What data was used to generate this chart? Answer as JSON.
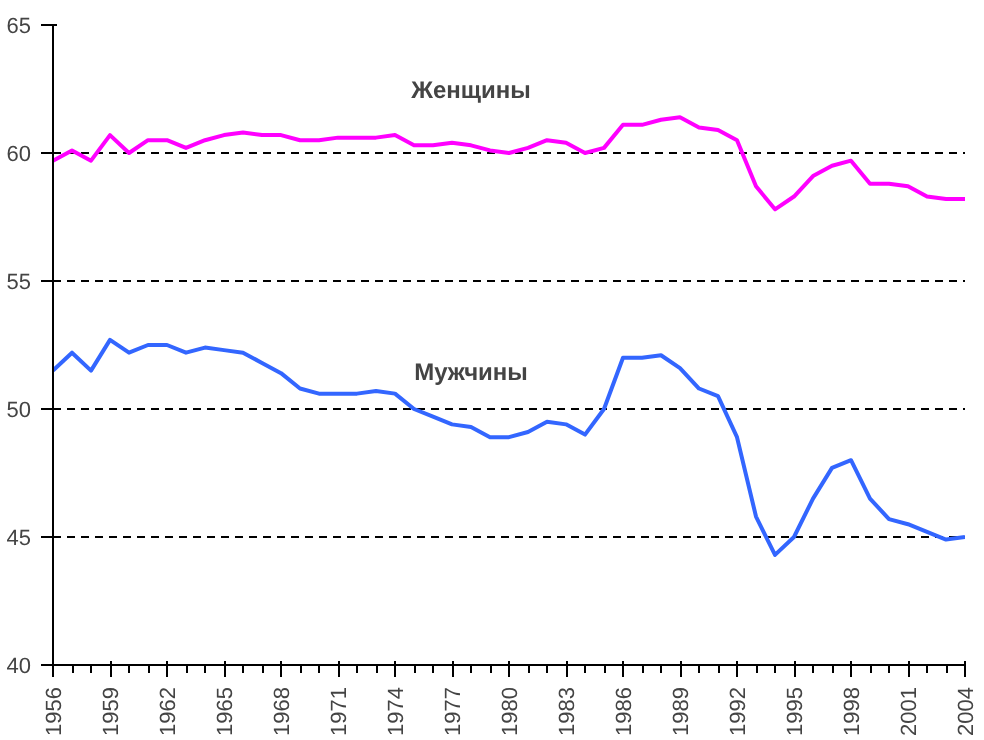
{
  "chart_data": {
    "type": "line",
    "x": [
      1956,
      1957,
      1958,
      1959,
      1960,
      1961,
      1962,
      1963,
      1964,
      1965,
      1966,
      1967,
      1968,
      1969,
      1970,
      1971,
      1972,
      1973,
      1974,
      1975,
      1976,
      1977,
      1978,
      1979,
      1980,
      1981,
      1982,
      1983,
      1984,
      1985,
      1986,
      1987,
      1988,
      1989,
      1990,
      1991,
      1992,
      1993,
      1994,
      1995,
      1996,
      1997,
      1998,
      1999,
      2000,
      2001,
      2002,
      2003,
      2004
    ],
    "series": [
      {
        "name": "Женщины",
        "color": "#ff00ff",
        "values": [
          59.7,
          60.1,
          59.7,
          60.7,
          60.0,
          60.5,
          60.5,
          60.2,
          60.5,
          60.7,
          60.8,
          60.7,
          60.7,
          60.5,
          60.5,
          60.6,
          60.6,
          60.6,
          60.7,
          60.3,
          60.3,
          60.4,
          60.3,
          60.1,
          60.0,
          60.2,
          60.5,
          60.4,
          60.0,
          60.2,
          61.1,
          61.1,
          61.3,
          61.4,
          61.0,
          60.9,
          60.5,
          58.7,
          57.8,
          58.3,
          59.1,
          59.5,
          59.7,
          58.8,
          58.8,
          58.7,
          58.3,
          58.2,
          58.2
        ]
      },
      {
        "name": "Мужчины",
        "color": "#3366ff",
        "values": [
          51.5,
          52.2,
          51.5,
          52.7,
          52.2,
          52.5,
          52.5,
          52.2,
          52.4,
          52.3,
          52.2,
          51.8,
          51.4,
          50.8,
          50.6,
          50.6,
          50.6,
          50.7,
          50.6,
          50.0,
          49.7,
          49.4,
          49.3,
          48.9,
          48.9,
          49.1,
          49.5,
          49.4,
          49.0,
          50.0,
          52.0,
          52.0,
          52.1,
          51.6,
          50.8,
          50.5,
          48.9,
          45.8,
          44.3,
          45.0,
          46.5,
          47.7,
          48.0,
          46.5,
          45.7,
          45.5,
          45.2,
          44.9,
          45.0
        ]
      }
    ],
    "xlim": [
      1956,
      2004
    ],
    "xticks": [
      1956,
      1959,
      1962,
      1965,
      1968,
      1971,
      1974,
      1977,
      1980,
      1983,
      1986,
      1989,
      1992,
      1995,
      1998,
      2001,
      2004
    ],
    "ylim": [
      40,
      65
    ],
    "yticks": [
      40,
      45,
      50,
      55,
      60,
      65
    ],
    "grid": "y",
    "marker": "none",
    "line_style": "solid"
  }
}
